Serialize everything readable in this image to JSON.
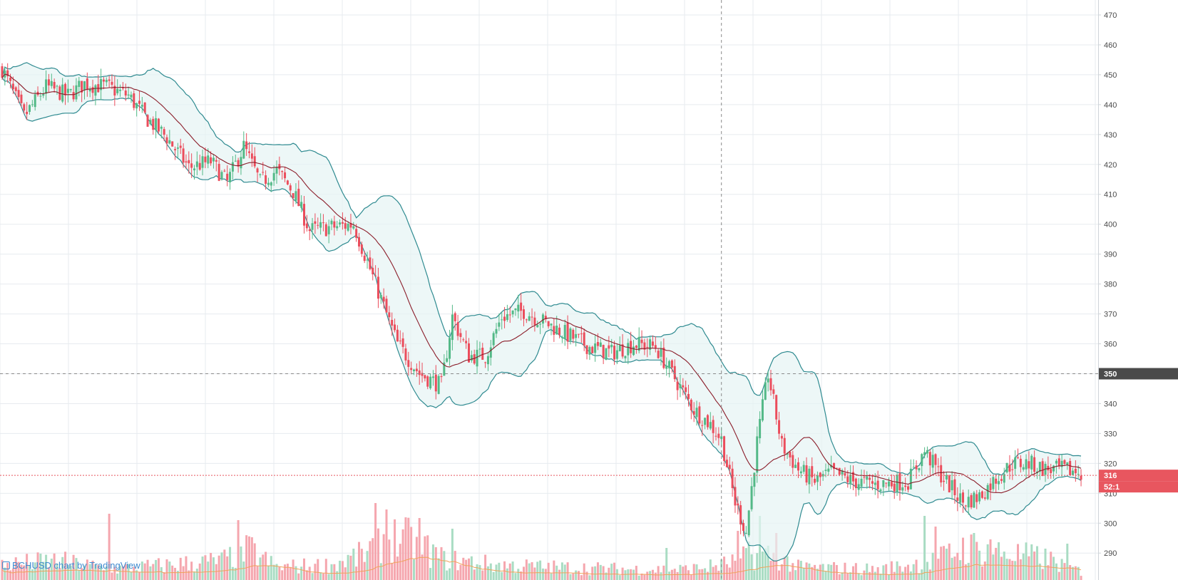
{
  "watermark": "BCHUSD chart by TradingView",
  "colors": {
    "up": "#53b987",
    "down": "#eb4d5c",
    "up_volume": "#a9dcc3",
    "down_volume": "#f5a6ae",
    "band_line": "#2e8a90",
    "band_fill": "#e6f3f4",
    "basis_line": "#8b1d2a",
    "volume_ma": "#f0a35a",
    "crosshair": "#8a8a8a",
    "last_price_line": "#e8565f",
    "crosshair_badge": "#4a4a4a",
    "grid": "#e7ebef"
  },
  "chart_data": {
    "type": "candlestick",
    "symbol": "BCHUSD",
    "ylim": [
      281,
      475
    ],
    "y_ticks": [
      290,
      300,
      310,
      320,
      330,
      340,
      350,
      360,
      370,
      380,
      390,
      400,
      410,
      420,
      430,
      440,
      450,
      460,
      470
    ],
    "y_tick_labels": [
      "290",
      "300",
      "310",
      "320",
      "330",
      "340",
      "350",
      "360",
      "370",
      "380",
      "390",
      "400",
      "410",
      "420",
      "430",
      "440",
      "450",
      "460",
      "470"
    ],
    "crosshair": {
      "price": 350,
      "label": "350",
      "bar_index": 262
    },
    "last_price": {
      "value": 316,
      "label": "316",
      "countdown": "52:1"
    },
    "candles_count": 394,
    "close_anchors": [
      [
        0,
        452
      ],
      [
        8,
        436
      ],
      [
        16,
        446
      ],
      [
        24,
        443
      ],
      [
        30,
        447
      ],
      [
        38,
        446
      ],
      [
        46,
        443
      ],
      [
        52,
        436
      ],
      [
        60,
        429
      ],
      [
        68,
        419
      ],
      [
        76,
        421
      ],
      [
        82,
        414
      ],
      [
        88,
        426
      ],
      [
        94,
        414
      ],
      [
        100,
        418
      ],
      [
        106,
        411
      ],
      [
        112,
        398
      ],
      [
        120,
        399
      ],
      [
        128,
        400
      ],
      [
        136,
        380
      ],
      [
        144,
        360
      ],
      [
        152,
        350
      ],
      [
        160,
        346
      ],
      [
        164,
        369
      ],
      [
        170,
        356
      ],
      [
        176,
        356
      ],
      [
        182,
        369
      ],
      [
        190,
        371
      ],
      [
        198,
        367
      ],
      [
        206,
        363
      ],
      [
        214,
        359
      ],
      [
        222,
        357
      ],
      [
        230,
        360
      ],
      [
        238,
        359
      ],
      [
        246,
        347
      ],
      [
        252,
        338
      ],
      [
        258,
        333
      ],
      [
        262,
        328
      ],
      [
        267,
        307
      ],
      [
        271,
        297
      ],
      [
        275,
        327
      ],
      [
        279,
        350
      ],
      [
        284,
        326
      ],
      [
        290,
        318
      ],
      [
        296,
        314
      ],
      [
        302,
        317
      ],
      [
        310,
        314
      ],
      [
        318,
        313
      ],
      [
        330,
        314
      ],
      [
        336,
        324
      ],
      [
        342,
        316
      ],
      [
        350,
        307
      ],
      [
        356,
        309
      ],
      [
        362,
        315
      ],
      [
        368,
        320
      ],
      [
        374,
        320
      ],
      [
        380,
        318
      ],
      [
        386,
        318
      ],
      [
        393,
        317
      ]
    ],
    "volume_profile": [
      [
        0,
        0.07
      ],
      [
        20,
        0.09
      ],
      [
        40,
        0.05
      ],
      [
        60,
        0.07
      ],
      [
        80,
        0.09
      ],
      [
        90,
        0.14
      ],
      [
        100,
        0.06
      ],
      [
        120,
        0.07
      ],
      [
        132,
        0.12
      ],
      [
        140,
        0.2
      ],
      [
        150,
        0.18
      ],
      [
        160,
        0.1
      ],
      [
        180,
        0.07
      ],
      [
        200,
        0.06
      ],
      [
        230,
        0.05
      ],
      [
        250,
        0.05
      ],
      [
        262,
        0.07
      ],
      [
        270,
        0.1
      ],
      [
        280,
        0.12
      ],
      [
        290,
        0.06
      ],
      [
        320,
        0.05
      ],
      [
        340,
        0.09
      ],
      [
        350,
        0.15
      ],
      [
        362,
        0.13
      ],
      [
        380,
        0.1
      ],
      [
        393,
        0.04
      ]
    ],
    "volume_spikes": [
      [
        39,
        0.31
      ],
      [
        86,
        0.28
      ],
      [
        91,
        0.2
      ],
      [
        136,
        0.36
      ],
      [
        140,
        0.33
      ],
      [
        152,
        0.29
      ],
      [
        164,
        0.24
      ],
      [
        242,
        0.15
      ],
      [
        268,
        0.23
      ],
      [
        272,
        0.18
      ],
      [
        276,
        0.3
      ],
      [
        282,
        0.22
      ],
      [
        336,
        0.3
      ],
      [
        340,
        0.25
      ],
      [
        354,
        0.22
      ],
      [
        360,
        0.19
      ],
      [
        388,
        0.17
      ]
    ],
    "volume_ma_scale": 0.5,
    "bollinger": {
      "length": 20,
      "mult": 2
    }
  }
}
